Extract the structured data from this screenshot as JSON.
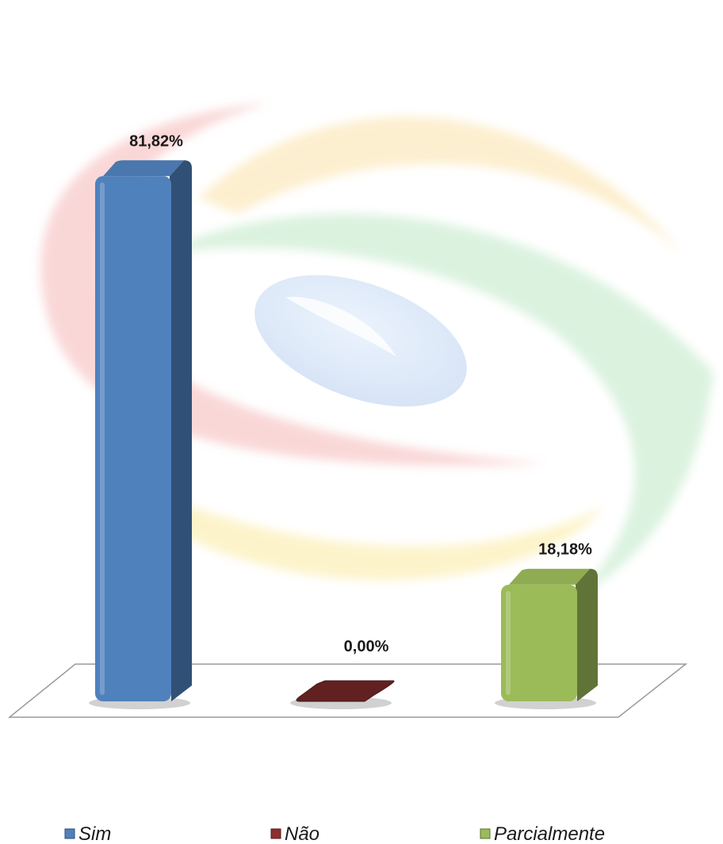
{
  "chart_data": {
    "type": "bar",
    "categories": [
      "Sim",
      "Não",
      "Parcialmente"
    ],
    "series": [
      {
        "values": [
          81.82,
          0.0,
          18.18
        ]
      }
    ],
    "data_labels": [
      "81,82%",
      "0,00%",
      "18,18%"
    ],
    "colors": [
      "#4f81bd",
      "#8b2f2f",
      "#9bbb59"
    ],
    "ylim": [
      0,
      100
    ],
    "grid": false,
    "legend_position": "bottom",
    "title": "",
    "xlabel": "",
    "ylabel": ""
  }
}
